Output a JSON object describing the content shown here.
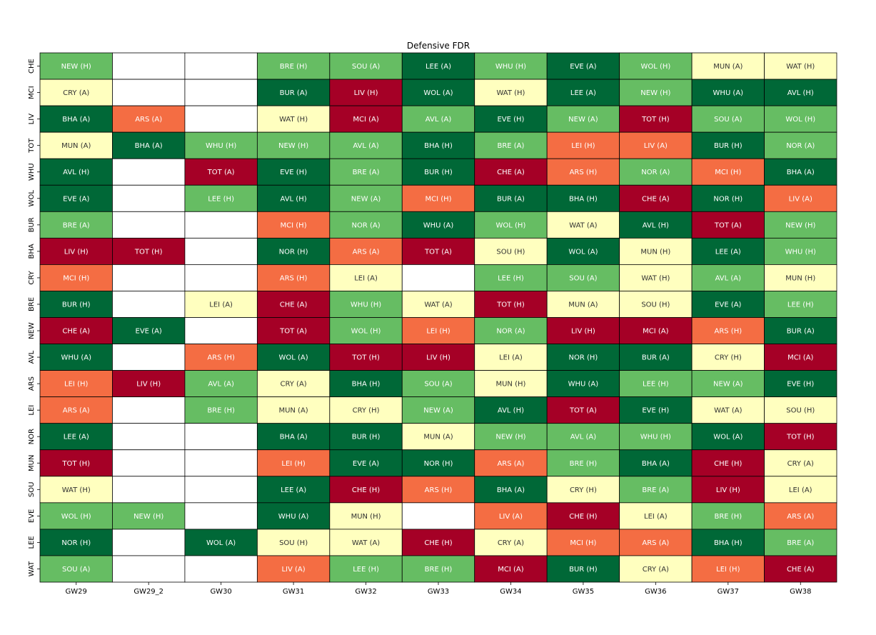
{
  "chart_data": {
    "type": "heatmap",
    "title": "Defensive FDR",
    "xlabel": "",
    "ylabel": "",
    "columns": [
      "GW29",
      "GW29_2",
      "GW30",
      "GW31",
      "GW32",
      "GW33",
      "GW34",
      "GW35",
      "GW36",
      "GW37",
      "GW38"
    ],
    "rows": [
      "CHE",
      "MCI",
      "LIV",
      "TOT",
      "WHU",
      "WOL",
      "BUR",
      "BHA",
      "CRY",
      "BRE",
      "NEW",
      "AVL",
      "ARS",
      "LEI",
      "NOR",
      "MUN",
      "SOU",
      "EVE",
      "LEE",
      "WAT"
    ],
    "color_scale": {
      "1": "#006837",
      "2": "#66bd63",
      "3": "#ffffbf",
      "4": "#f46d43",
      "5": "#a50026",
      "empty": "#ffffff"
    },
    "cells": [
      [
        [
          "NEW (H)",
          2
        ],
        [
          "",
          0
        ],
        [
          "",
          0
        ],
        [
          "BRE (H)",
          2
        ],
        [
          "SOU (A)",
          2
        ],
        [
          "LEE (A)",
          1
        ],
        [
          "WHU (H)",
          2
        ],
        [
          "EVE (A)",
          1
        ],
        [
          "WOL (H)",
          2
        ],
        [
          "MUN (A)",
          3
        ],
        [
          "WAT (H)",
          3
        ]
      ],
      [
        [
          "CRY (A)",
          3
        ],
        [
          "",
          0
        ],
        [
          "",
          0
        ],
        [
          "BUR (A)",
          1
        ],
        [
          "LIV (H)",
          5
        ],
        [
          "WOL (A)",
          1
        ],
        [
          "WAT (H)",
          3
        ],
        [
          "LEE (A)",
          1
        ],
        [
          "NEW (H)",
          2
        ],
        [
          "WHU (A)",
          1
        ],
        [
          "AVL (H)",
          1
        ]
      ],
      [
        [
          "BHA (A)",
          1
        ],
        [
          "ARS (A)",
          4
        ],
        [
          "",
          0
        ],
        [
          "WAT (H)",
          3
        ],
        [
          "MCI (A)",
          5
        ],
        [
          "AVL (A)",
          2
        ],
        [
          "EVE (H)",
          1
        ],
        [
          "NEW (A)",
          2
        ],
        [
          "TOT (H)",
          5
        ],
        [
          "SOU (A)",
          2
        ],
        [
          "WOL (H)",
          2
        ]
      ],
      [
        [
          "MUN (A)",
          3
        ],
        [
          "BHA (A)",
          1
        ],
        [
          "WHU (H)",
          2
        ],
        [
          "NEW (H)",
          2
        ],
        [
          "AVL (A)",
          2
        ],
        [
          "BHA (H)",
          1
        ],
        [
          "BRE (A)",
          2
        ],
        [
          "LEI (H)",
          4
        ],
        [
          "LIV (A)",
          4
        ],
        [
          "BUR (H)",
          1
        ],
        [
          "NOR (A)",
          2
        ]
      ],
      [
        [
          "AVL (H)",
          1
        ],
        [
          "",
          0
        ],
        [
          "TOT (A)",
          5
        ],
        [
          "EVE (H)",
          1
        ],
        [
          "BRE (A)",
          2
        ],
        [
          "BUR (H)",
          1
        ],
        [
          "CHE (A)",
          5
        ],
        [
          "ARS (H)",
          4
        ],
        [
          "NOR (A)",
          2
        ],
        [
          "MCI (H)",
          4
        ],
        [
          "BHA (A)",
          1
        ]
      ],
      [
        [
          "EVE (A)",
          1
        ],
        [
          "",
          0
        ],
        [
          "LEE (H)",
          2
        ],
        [
          "AVL (H)",
          1
        ],
        [
          "NEW (A)",
          2
        ],
        [
          "MCI (H)",
          4
        ],
        [
          "BUR (A)",
          1
        ],
        [
          "BHA (H)",
          1
        ],
        [
          "CHE (A)",
          5
        ],
        [
          "NOR (H)",
          1
        ],
        [
          "LIV (A)",
          4
        ]
      ],
      [
        [
          "BRE (A)",
          2
        ],
        [
          "",
          0
        ],
        [
          "",
          0
        ],
        [
          "MCI (H)",
          4
        ],
        [
          "NOR (A)",
          2
        ],
        [
          "WHU (A)",
          1
        ],
        [
          "WOL (H)",
          2
        ],
        [
          "WAT (A)",
          3
        ],
        [
          "AVL (H)",
          1
        ],
        [
          "TOT (A)",
          5
        ],
        [
          "NEW (H)",
          2
        ]
      ],
      [
        [
          "LIV (H)",
          5
        ],
        [
          "TOT (H)",
          5
        ],
        [
          "",
          0
        ],
        [
          "NOR (H)",
          1
        ],
        [
          "ARS (A)",
          4
        ],
        [
          "TOT (A)",
          5
        ],
        [
          "SOU (H)",
          3
        ],
        [
          "WOL (A)",
          1
        ],
        [
          "MUN (H)",
          3
        ],
        [
          "LEE (A)",
          1
        ],
        [
          "WHU (H)",
          2
        ]
      ],
      [
        [
          "MCI (H)",
          4
        ],
        [
          "",
          0
        ],
        [
          "",
          0
        ],
        [
          "ARS (H)",
          4
        ],
        [
          "LEI (A)",
          3
        ],
        [
          "",
          0
        ],
        [
          "LEE (H)",
          2
        ],
        [
          "SOU (A)",
          2
        ],
        [
          "WAT (H)",
          3
        ],
        [
          "AVL (A)",
          2
        ],
        [
          "MUN (H)",
          3
        ]
      ],
      [
        [
          "BUR (H)",
          1
        ],
        [
          "",
          0
        ],
        [
          "LEI (A)",
          3
        ],
        [
          "CHE (A)",
          5
        ],
        [
          "WHU (H)",
          2
        ],
        [
          "WAT (A)",
          3
        ],
        [
          "TOT (H)",
          5
        ],
        [
          "MUN (A)",
          3
        ],
        [
          "SOU (H)",
          3
        ],
        [
          "EVE (A)",
          1
        ],
        [
          "LEE (H)",
          2
        ]
      ],
      [
        [
          "CHE (A)",
          5
        ],
        [
          "EVE (A)",
          1
        ],
        [
          "",
          0
        ],
        [
          "TOT (A)",
          5
        ],
        [
          "WOL (H)",
          2
        ],
        [
          "LEI (H)",
          4
        ],
        [
          "NOR (A)",
          2
        ],
        [
          "LIV (H)",
          5
        ],
        [
          "MCI (A)",
          5
        ],
        [
          "ARS (H)",
          4
        ],
        [
          "BUR (A)",
          1
        ]
      ],
      [
        [
          "WHU (A)",
          1
        ],
        [
          "",
          0
        ],
        [
          "ARS (H)",
          4
        ],
        [
          "WOL (A)",
          1
        ],
        [
          "TOT (H)",
          5
        ],
        [
          "LIV (H)",
          5
        ],
        [
          "LEI (A)",
          3
        ],
        [
          "NOR (H)",
          1
        ],
        [
          "BUR (A)",
          1
        ],
        [
          "CRY (H)",
          3
        ],
        [
          "MCI (A)",
          5
        ]
      ],
      [
        [
          "LEI (H)",
          4
        ],
        [
          "LIV (H)",
          5
        ],
        [
          "AVL (A)",
          2
        ],
        [
          "CRY (A)",
          3
        ],
        [
          "BHA (H)",
          1
        ],
        [
          "SOU (A)",
          2
        ],
        [
          "MUN (H)",
          3
        ],
        [
          "WHU (A)",
          1
        ],
        [
          "LEE (H)",
          2
        ],
        [
          "NEW (A)",
          2
        ],
        [
          "EVE (H)",
          1
        ]
      ],
      [
        [
          "ARS (A)",
          4
        ],
        [
          "",
          0
        ],
        [
          "BRE (H)",
          2
        ],
        [
          "MUN (A)",
          3
        ],
        [
          "CRY (H)",
          3
        ],
        [
          "NEW (A)",
          2
        ],
        [
          "AVL (H)",
          1
        ],
        [
          "TOT (A)",
          5
        ],
        [
          "EVE (H)",
          1
        ],
        [
          "WAT (A)",
          3
        ],
        [
          "SOU (H)",
          3
        ]
      ],
      [
        [
          "LEE (A)",
          1
        ],
        [
          "",
          0
        ],
        [
          "",
          0
        ],
        [
          "BHA (A)",
          1
        ],
        [
          "BUR (H)",
          1
        ],
        [
          "MUN (A)",
          3
        ],
        [
          "NEW (H)",
          2
        ],
        [
          "AVL (A)",
          2
        ],
        [
          "WHU (H)",
          2
        ],
        [
          "WOL (A)",
          1
        ],
        [
          "TOT (H)",
          5
        ]
      ],
      [
        [
          "TOT (H)",
          5
        ],
        [
          "",
          0
        ],
        [
          "",
          0
        ],
        [
          "LEI (H)",
          4
        ],
        [
          "EVE (A)",
          1
        ],
        [
          "NOR (H)",
          1
        ],
        [
          "ARS (A)",
          4
        ],
        [
          "BRE (H)",
          2
        ],
        [
          "BHA (A)",
          1
        ],
        [
          "CHE (H)",
          5
        ],
        [
          "CRY (A)",
          3
        ]
      ],
      [
        [
          "WAT (H)",
          3
        ],
        [
          "",
          0
        ],
        [
          "",
          0
        ],
        [
          "LEE (A)",
          1
        ],
        [
          "CHE (H)",
          5
        ],
        [
          "ARS (H)",
          4
        ],
        [
          "BHA (A)",
          1
        ],
        [
          "CRY (H)",
          3
        ],
        [
          "BRE (A)",
          2
        ],
        [
          "LIV (H)",
          5
        ],
        [
          "LEI (A)",
          3
        ]
      ],
      [
        [
          "WOL (H)",
          2
        ],
        [
          "NEW (H)",
          2
        ],
        [
          "",
          0
        ],
        [
          "WHU (A)",
          1
        ],
        [
          "MUN (H)",
          3
        ],
        [
          "",
          0
        ],
        [
          "LIV (A)",
          4
        ],
        [
          "CHE (H)",
          5
        ],
        [
          "LEI (A)",
          3
        ],
        [
          "BRE (H)",
          2
        ],
        [
          "ARS (A)",
          4
        ]
      ],
      [
        [
          "NOR (H)",
          1
        ],
        [
          "",
          0
        ],
        [
          "WOL (A)",
          1
        ],
        [
          "SOU (H)",
          3
        ],
        [
          "WAT (A)",
          3
        ],
        [
          "CHE (H)",
          5
        ],
        [
          "CRY (A)",
          3
        ],
        [
          "MCI (H)",
          4
        ],
        [
          "ARS (A)",
          4
        ],
        [
          "BHA (H)",
          1
        ],
        [
          "BRE (A)",
          2
        ]
      ],
      [
        [
          "SOU (A)",
          2
        ],
        [
          "",
          0
        ],
        [
          "",
          0
        ],
        [
          "LIV (A)",
          4
        ],
        [
          "LEE (H)",
          2
        ],
        [
          "BRE (H)",
          2
        ],
        [
          "MCI (A)",
          5
        ],
        [
          "BUR (H)",
          1
        ],
        [
          "CRY (A)",
          3
        ],
        [
          "LEI (H)",
          4
        ],
        [
          "CHE (A)",
          5
        ]
      ]
    ]
  }
}
